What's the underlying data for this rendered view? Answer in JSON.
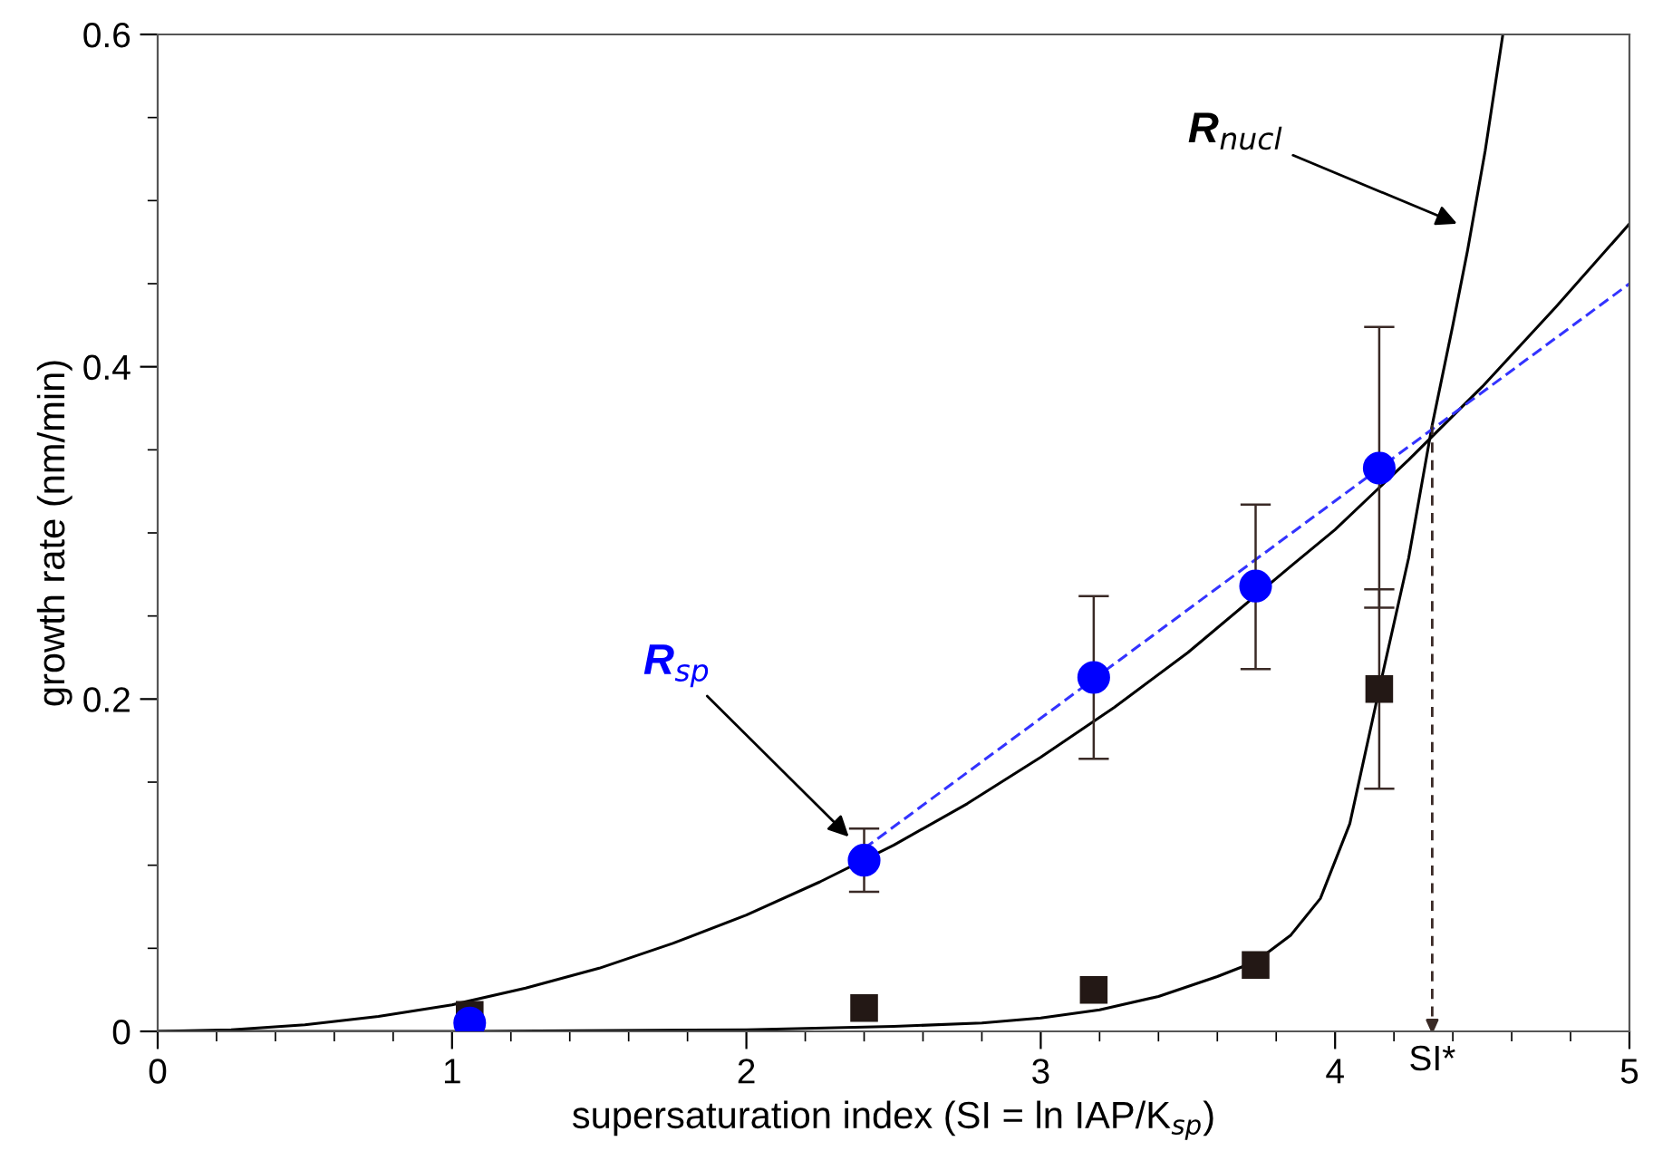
{
  "chart_data": {
    "type": "scatter",
    "xlabel": "supersaturation index (SI = ln IAP/K$_{sp}$)",
    "ylabel": "growth rate (nm/min)",
    "xlim": [
      0,
      5
    ],
    "ylim": [
      0,
      0.6
    ],
    "xticks": [
      0,
      1,
      2,
      3,
      4,
      5
    ],
    "yticks": [
      0,
      0.2,
      0.4,
      0.6
    ],
    "grid": false,
    "series": [
      {
        "type": "line",
        "color": "#000000",
        "marker": "none",
        "line_style": "solid",
        "x": [
          0,
          0.25,
          0.5,
          0.75,
          1,
          1.25,
          1.5,
          1.75,
          2,
          2.25,
          2.5,
          2.75,
          3,
          3.25,
          3.5,
          3.85,
          4,
          4.25,
          4.5,
          4.75,
          5
        ],
        "values": [
          0,
          0.001,
          0.004,
          0.009,
          0.016,
          0.026,
          0.038,
          0.053,
          0.07,
          0.09,
          0.112,
          0.137,
          0.165,
          0.195,
          0.228,
          0.28,
          0.302,
          0.344,
          0.388,
          0.436,
          0.486
        ]
      },
      {
        "type": "line",
        "color": "#000000",
        "marker": "none",
        "line_style": "solid",
        "x": [
          0,
          1,
          2,
          2.5,
          2.8,
          3,
          3.2,
          3.4,
          3.6,
          3.73,
          3.85,
          3.95,
          4.05,
          4.15,
          4.25,
          4.33,
          4.4,
          4.45,
          4.51,
          4.57
        ],
        "values": [
          0,
          0,
          0.001,
          0.003,
          0.005,
          0.008,
          0.013,
          0.021,
          0.033,
          0.042,
          0.058,
          0.08,
          0.125,
          0.206,
          0.285,
          0.365,
          0.425,
          0.47,
          0.53,
          0.6
        ]
      },
      {
        "type": "line",
        "color": "#3333ff",
        "marker": "none",
        "line_style": "dashed",
        "x": [
          2.4,
          5
        ],
        "values": [
          0.11,
          0.45
        ]
      },
      {
        "color": "#231815",
        "marker": "square",
        "x": [
          1.06,
          2.4,
          3.18,
          3.73,
          4.15
        ],
        "values": [
          0.01,
          0.014,
          0.025,
          0.04,
          0.206
        ],
        "errors": [
          null,
          null,
          null,
          null,
          0.06
        ]
      },
      {
        "color": "#0000ff",
        "marker": "circle",
        "x": [
          1.06,
          2.4,
          3.18,
          3.73,
          4.15
        ],
        "values": [
          0.005,
          0.103,
          0.213,
          0.268,
          0.339
        ],
        "errors": [
          null,
          [
            0.084,
            0.122
          ],
          [
            0.164,
            0.262
          ],
          [
            0.218,
            0.317
          ],
          [
            0.255,
            0.424
          ]
        ]
      }
    ],
    "annotations": [
      {
        "text": "R$_{sp}$",
        "x": 2.36,
        "y": 0.115
      },
      {
        "text": "R$_{nucl}$",
        "x": 4.43,
        "y": 0.485
      },
      {
        "text": "SI*",
        "x": 4.33,
        "y": 0.365
      }
    ]
  }
}
